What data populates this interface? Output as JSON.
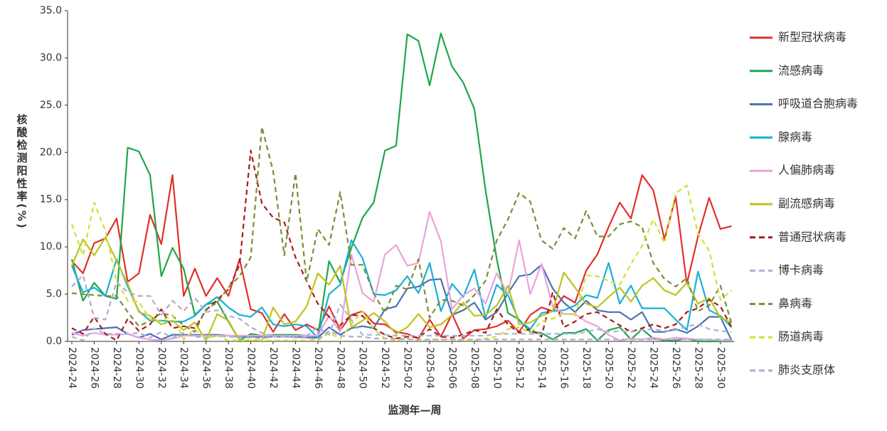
{
  "chart_data": {
    "type": "line",
    "x_label": "监测年—周",
    "y_label": "核酸检测阳性率(%)",
    "categories": [
      "2024-24",
      null,
      "2024-26",
      null,
      "2024-28",
      null,
      "2024-30",
      null,
      "2024-32",
      null,
      "2024-34",
      null,
      "2024-36",
      null,
      "2024-38",
      null,
      "2024-40",
      null,
      "2024-42",
      null,
      "2024-44",
      null,
      "2024-46",
      null,
      "2024-48",
      null,
      "2024-50",
      null,
      "2024-52",
      null,
      "2025-02",
      null,
      "2025-04",
      null,
      "2025-06",
      null,
      "2025-08",
      null,
      "2025-10",
      null,
      "2025-12",
      null,
      "2025-14",
      null,
      "2025-16",
      null,
      "2025-18",
      null,
      "2025-20",
      null,
      "2025-22",
      null,
      "2025-24",
      null,
      "2025-26",
      null,
      "2025-28",
      null,
      "2025-30",
      null
    ],
    "ylim": [
      0,
      35
    ],
    "yticks": [
      {
        "value": 0,
        "label": "0.0"
      },
      {
        "value": 5,
        "label": "5.0"
      },
      {
        "value": 10,
        "label": "10.0"
      },
      {
        "value": 15,
        "label": "15.0"
      },
      {
        "value": 20,
        "label": "20.0"
      },
      {
        "value": 25,
        "label": "25.0"
      },
      {
        "value": 30,
        "label": "30.0"
      },
      {
        "value": 35,
        "label": "35.0"
      }
    ],
    "legend": "right",
    "series": [
      {
        "name": "新型冠状病毒",
        "color": "#e0302a",
        "dashed": false,
        "values": [
          8.5,
          7.2,
          10.4,
          10.9,
          13.0,
          6.3,
          7.2,
          13.4,
          10.3,
          17.6,
          4.8,
          7.7,
          4.8,
          6.7,
          4.8,
          8.7,
          3.4,
          3.0,
          1.0,
          2.9,
          1.2,
          1.8,
          1.2,
          3.7,
          1.2,
          2.8,
          3.2,
          1.9,
          1.8,
          1.0,
          0.8,
          0.3,
          2.3,
          0.5,
          2.9,
          0.3,
          1.2,
          1.3,
          1.6,
          2.2,
          1.0,
          2.8,
          3.6,
          3.2,
          4.8,
          4.1,
          7.5,
          9.2,
          12.1,
          14.7,
          13.0,
          17.6,
          16.0,
          10.8,
          15.3,
          6.1,
          11.1,
          15.2,
          11.9,
          12.2
        ]
      },
      {
        "name": "流感病毒",
        "color": "#22a54a",
        "dashed": false,
        "values": [
          8.7,
          4.3,
          6.2,
          4.8,
          4.5,
          20.5,
          20.1,
          17.6,
          6.9,
          9.9,
          7.7,
          2.8,
          3.9,
          4.2,
          2.1,
          0.1,
          0.8,
          0.6,
          0.7,
          0.7,
          0.7,
          0.6,
          0.5,
          8.5,
          6.2,
          9.9,
          13.1,
          14.7,
          20.2,
          20.7,
          32.5,
          31.8,
          27.1,
          32.6,
          29.1,
          27.4,
          24.6,
          16.0,
          8.7,
          3.0,
          2.3,
          1.0,
          0.9,
          0.2,
          0.9,
          0.9,
          1.3,
          0.1,
          1.2,
          1.5,
          0.2,
          1.3,
          0.3,
          0.1,
          0.1,
          0.3,
          0,
          0,
          0,
          0
        ]
      },
      {
        "name": "呼吸道合胞病毒",
        "color": "#4a72b0",
        "dashed": false,
        "values": [
          0.7,
          1.2,
          1.3,
          1.4,
          1.5,
          0.8,
          0.4,
          0.8,
          0.2,
          0.7,
          0.7,
          0.7,
          0.7,
          0.7,
          0.6,
          0.5,
          0.5,
          0.5,
          0.5,
          0.5,
          0.5,
          0.4,
          0.4,
          1.5,
          0.7,
          1.4,
          1.6,
          1.4,
          3.4,
          3.7,
          5.6,
          5.8,
          6.5,
          6.6,
          2.8,
          3.3,
          4.1,
          2.3,
          3.1,
          5.1,
          6.9,
          7.1,
          8.1,
          5.6,
          4.1,
          3.1,
          4.3,
          3.3,
          3.1,
          3.1,
          2.3,
          3.1,
          1.0,
          1.0,
          1.3,
          0.9,
          1.6,
          2.6,
          2.6,
          0.1
        ]
      },
      {
        "name": "腺病毒",
        "color": "#18b0d8",
        "dashed": false,
        "values": [
          8.0,
          5.2,
          5.7,
          4.8,
          8.7,
          5.8,
          3.2,
          2.2,
          2.2,
          2.1,
          2.1,
          2.7,
          3.9,
          4.7,
          3.6,
          2.8,
          2.6,
          3.6,
          1.8,
          1.6,
          1.8,
          1.6,
          0.4,
          5.0,
          6.0,
          10.7,
          8.8,
          5.0,
          4.9,
          5.4,
          6.9,
          5.1,
          8.3,
          3.2,
          6.1,
          4.7,
          7.6,
          2.5,
          6.0,
          4.9,
          2.2,
          1.3,
          3.0,
          3.2,
          3.3,
          3.8,
          4.9,
          4.6,
          8.3,
          4.0,
          5.9,
          3.5,
          3.5,
          3.5,
          2.3,
          1.2,
          7.4,
          3.3,
          2.7,
          1.5
        ]
      },
      {
        "name": "人偏肺病毒",
        "color": "#e8a4d8",
        "dashed": false,
        "values": [
          0.9,
          0.6,
          0.9,
          0.7,
          0.7,
          0.8,
          0.4,
          0.2,
          0.1,
          0.3,
          0.6,
          0.6,
          0.6,
          0.6,
          0.6,
          0.6,
          0.6,
          0.6,
          0.6,
          0.6,
          0.6,
          0.6,
          0.6,
          2.7,
          1.0,
          9.2,
          5.1,
          4.2,
          9.2,
          10.2,
          8.0,
          8.3,
          13.7,
          10.6,
          3.4,
          4.9,
          5.6,
          4.0,
          7.2,
          5.0,
          10.7,
          5.0,
          8.2,
          3.7,
          2.9,
          2.9,
          2.1,
          1.6,
          0.7,
          0.1,
          0.3,
          0.2,
          0.4,
          0.2,
          0.4,
          0.3,
          0.2,
          0.2,
          0.1,
          0.1
        ]
      },
      {
        "name": "副流感病毒",
        "color": "#bcc41c",
        "dashed": false,
        "values": [
          8.0,
          10.8,
          9.1,
          11.0,
          8.5,
          6.1,
          3.1,
          2.7,
          1.8,
          2.2,
          1.2,
          2.0,
          0.1,
          2.9,
          2.2,
          0.1,
          0.1,
          0.1,
          3.6,
          1.8,
          2.1,
          3.7,
          7.2,
          6.0,
          8.0,
          1.5,
          2.2,
          3.0,
          2.1,
          0.8,
          1.5,
          2.9,
          1.5,
          1.8,
          2.8,
          4.1,
          2.7,
          2.8,
          3.8,
          5.9,
          1.8,
          2.0,
          2.7,
          3.2,
          7.3,
          5.7,
          4.0,
          3.6,
          4.7,
          5.7,
          4.2,
          5.9,
          6.7,
          5.4,
          4.9,
          6.2,
          4.0,
          4.6,
          2.5,
          2.0
        ]
      },
      {
        "name": "普通冠状病毒",
        "color": "#aa1a1a",
        "dashed": true,
        "values": [
          1.4,
          0.8,
          2.6,
          0.8,
          0.1,
          2.4,
          1.1,
          1.8,
          3.4,
          1.4,
          1.6,
          1.4,
          3.3,
          4.4,
          5.5,
          8.1,
          20.2,
          14.6,
          13.1,
          12.6,
          8.9,
          6.4,
          4.0,
          2.6,
          1.7,
          2.8,
          2.7,
          1.4,
          0.7,
          0.3,
          0.5,
          0.4,
          1.3,
          0.5,
          0.4,
          0.7,
          1.2,
          0.9,
          3.4,
          1.8,
          0.9,
          1.3,
          0.5,
          5.2,
          1.5,
          2.1,
          2.9,
          3.1,
          2.4,
          1.7,
          1.0,
          1.4,
          1.8,
          1.4,
          1.8,
          3.1,
          3.5,
          4.4,
          3.7,
          1.5
        ]
      },
      {
        "name": "博卡病毒",
        "color": "#a4b4dc",
        "dashed": true,
        "values": [
          0.5,
          0.1,
          1.4,
          0.8,
          0.8,
          0.8,
          0.9,
          0.4,
          1.0,
          0.4,
          0.9,
          0.5,
          0.4,
          0.6,
          0.5,
          0.4,
          0.4,
          0.3,
          0.5,
          0.5,
          0.6,
          0.6,
          1.5,
          0.7,
          3.9,
          2.3,
          0.7,
          0.7,
          0.7,
          0.6,
          0.6,
          0.6,
          0.6,
          0.6,
          0.6,
          0.6,
          0.6,
          0.6,
          0.8,
          0.8,
          0.8,
          0.8,
          0.8,
          0.8,
          0.8,
          0.8,
          1.0,
          1.3,
          1.0,
          1.1,
          1.0,
          1.2,
          1.3,
          1.1,
          1.2,
          1.6,
          1.8,
          1.3,
          1.1,
          1.0
        ]
      },
      {
        "name": "鼻病毒",
        "color": "#7a8c3a",
        "dashed": true,
        "values": [
          5.1,
          5.0,
          4.9,
          4.8,
          4.8,
          3.1,
          1.6,
          2.2,
          3.0,
          2.7,
          1.7,
          1.0,
          3.4,
          4.1,
          5.7,
          6.9,
          8.9,
          22.7,
          18.0,
          9.1,
          17.8,
          6.3,
          11.9,
          10.2,
          15.8,
          8.1,
          8.1,
          5.1,
          3.0,
          5.9,
          5.5,
          8.7,
          2.5,
          4.4,
          4.3,
          3.8,
          4.9,
          6.4,
          10.7,
          12.9,
          15.7,
          14.8,
          10.7,
          9.8,
          12.0,
          10.9,
          13.8,
          11.1,
          11.1,
          12.4,
          12.7,
          12.1,
          8.3,
          6.6,
          5.8,
          6.7,
          3.2,
          3.8,
          5.9,
          1.9
        ]
      },
      {
        "name": "肠道病毒",
        "color": "#d4e030",
        "dashed": true,
        "values": [
          12.4,
          9.1,
          14.7,
          11.7,
          6.4,
          4.3,
          4.2,
          2.3,
          2.1,
          2.8,
          0.2,
          1.3,
          0.3,
          0.6,
          0.1,
          0.1,
          0.1,
          0.1,
          0.1,
          0.1,
          0.1,
          0.1,
          0.1,
          0.9,
          0.3,
          1.8,
          3.2,
          1.3,
          0.3,
          0.1,
          0.3,
          0.1,
          0.2,
          0.2,
          0.2,
          0.1,
          0.1,
          0.3,
          0.5,
          1.3,
          1.5,
          0.9,
          2.1,
          2.4,
          3.0,
          2.7,
          7.0,
          6.9,
          6.4,
          6.0,
          8.2,
          10.1,
          12.9,
          10.4,
          15.7,
          16.5,
          11.4,
          9.6,
          4.4,
          5.4
        ]
      },
      {
        "name": "肺炎支原体",
        "color": "#b4a8cc",
        "dashed": true,
        "values": [
          5.8,
          7.0,
          2.5,
          2.3,
          6.3,
          5.2,
          4.8,
          4.8,
          2.8,
          4.3,
          3.2,
          4.6,
          3.1,
          3.3,
          2.7,
          2.4,
          1.5,
          0.9,
          0.6,
          0.6,
          0.4,
          0.4,
          0.2,
          1.1,
          0.6,
          0.5,
          0.5,
          0.3,
          0.3,
          0.3,
          0.2,
          0.2,
          0.2,
          0.2,
          0.2,
          0.2,
          0.2,
          0.2,
          0.2,
          0.2,
          0.2,
          0.2,
          0.2,
          0.2,
          0.2,
          0.2,
          0.2,
          0.2,
          0.2,
          0.2,
          0.2,
          0.2,
          0.2,
          0.2,
          0.2,
          0.2,
          0.2,
          0.2,
          0.2,
          0.2
        ]
      }
    ]
  }
}
